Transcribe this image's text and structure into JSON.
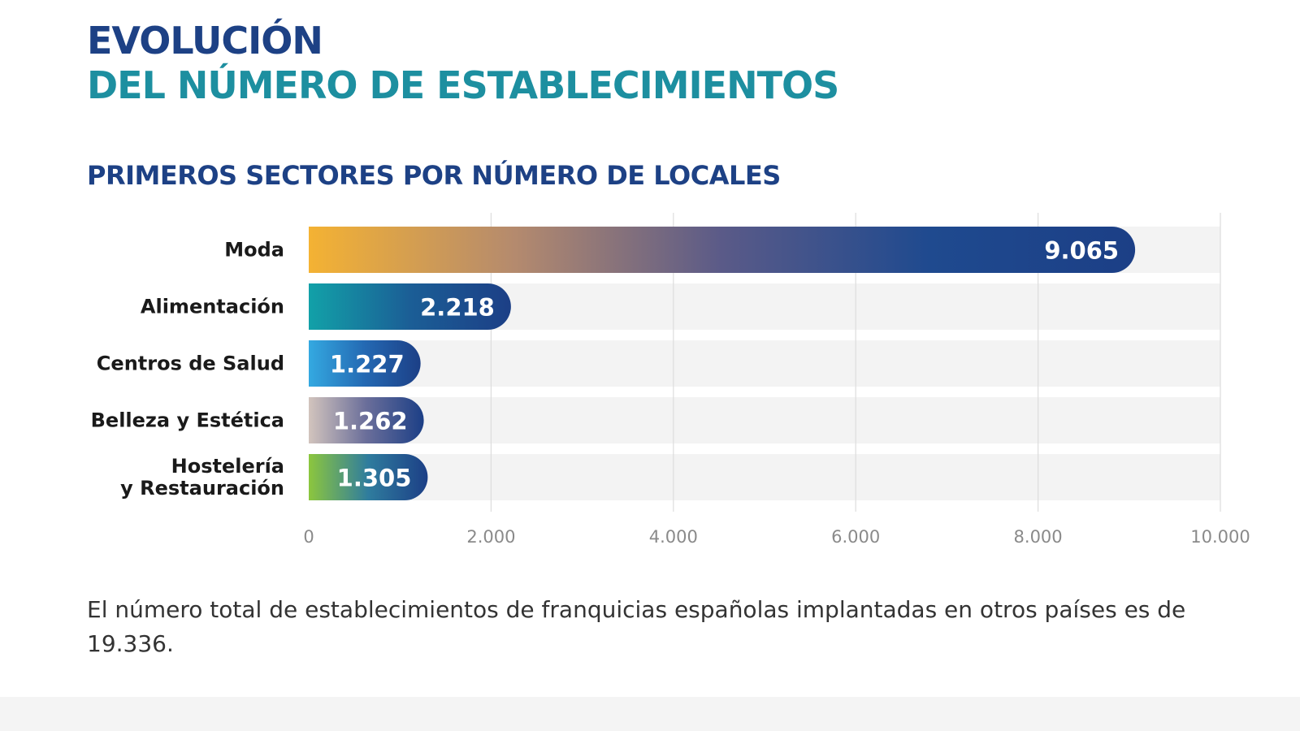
{
  "header": {
    "title_line1": "EVOLUCIÓN",
    "title_line2": "DEL NÚMERO DE ESTABLECIMIENTOS",
    "subtitle": "PRIMEROS SECTORES POR NÚMERO DE LOCALES"
  },
  "chart_data": {
    "type": "bar",
    "orientation": "horizontal",
    "title": "PRIMEROS SECTORES POR NÚMERO DE LOCALES",
    "categories": [
      [
        "Moda"
      ],
      [
        "Alimentación"
      ],
      [
        "Centros de Salud"
      ],
      [
        "Belleza y Estética"
      ],
      [
        "Hostelería",
        "y Restauración"
      ]
    ],
    "values": [
      9065,
      2218,
      1227,
      1262,
      1305
    ],
    "value_labels": [
      "9.065",
      "2.218",
      "1.227",
      "1.262",
      "1.305"
    ],
    "xlim": [
      0,
      10000
    ],
    "x_ticks": [
      0,
      2000,
      4000,
      6000,
      8000,
      10000
    ],
    "x_tick_labels": [
      "0",
      "2.000",
      "4.000",
      "6.000",
      "8.000",
      "10.000"
    ],
    "grid": true,
    "bar_gradients": [
      [
        "#f4b233",
        "#b48a6e",
        "#5a5a88",
        "#1f4a8f",
        "#1c3f86"
      ],
      [
        "#12a1a8",
        "#1b5e96",
        "#1c3f86"
      ],
      [
        "#34a9e1",
        "#2469b3",
        "#1c3f86"
      ],
      [
        "#d2c4bd",
        "#6a6e9a",
        "#1c3f86"
      ],
      [
        "#8cc63e",
        "#2f7c9e",
        "#1c3f86"
      ]
    ],
    "colors": {
      "track": "#f3f3f3",
      "grid": "#dddddd",
      "label": "#1a1a1a",
      "tick": "#8a8a8a",
      "value_text": "#ffffff"
    }
  },
  "footnote": "El número total de establecimientos de franquicias españolas implantadas en otros países es de 19.336."
}
